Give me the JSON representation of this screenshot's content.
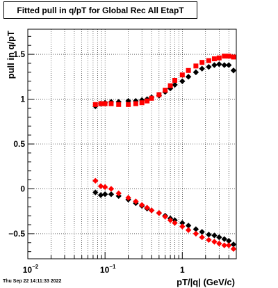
{
  "chart_data": {
    "type": "scatter",
    "title": "Fitted pull in q/pT for Global Rec All EtapT",
    "xlabel": "pT/|q| (GeV/c)",
    "ylabel": "pull in q/pT",
    "x_scale": "log",
    "xlim": [
      0.01,
      5.0
    ],
    "ylim": [
      -0.78,
      1.78
    ],
    "x_ticks": [
      {
        "value": 0.01,
        "label": "10^-2"
      },
      {
        "value": 0.1,
        "label": "10^-1"
      },
      {
        "value": 1,
        "label": "1"
      }
    ],
    "y_ticks": [
      {
        "value": -0.5,
        "label": "−0.5"
      },
      {
        "value": 0,
        "label": "0"
      },
      {
        "value": 0.5,
        "label": "0.5"
      },
      {
        "value": 1,
        "label": "1"
      },
      {
        "value": 1.5,
        "label": "1.5"
      }
    ],
    "grid": true,
    "series": [
      {
        "color": "#000000",
        "marker": "diamond",
        "group": "upper",
        "x": [
          0.075,
          0.088,
          0.1,
          0.12,
          0.15,
          0.2,
          0.25,
          0.3,
          0.35,
          0.4,
          0.5,
          0.6,
          0.7,
          0.8,
          1.0,
          1.2,
          1.5,
          1.8,
          2.2,
          2.6,
          3.0,
          3.5,
          4.0,
          4.6
        ],
        "y": [
          0.92,
          0.95,
          0.96,
          0.97,
          0.97,
          0.98,
          0.98,
          0.99,
          1.0,
          1.02,
          1.04,
          1.08,
          1.12,
          1.16,
          1.2,
          1.25,
          1.3,
          1.34,
          1.36,
          1.38,
          1.39,
          1.38,
          1.38,
          1.32
        ]
      },
      {
        "color": "#ff0000",
        "marker": "square",
        "group": "upper",
        "x": [
          0.075,
          0.088,
          0.1,
          0.12,
          0.15,
          0.2,
          0.25,
          0.3,
          0.35,
          0.4,
          0.5,
          0.6,
          0.7,
          0.8,
          1.0,
          1.2,
          1.5,
          1.8,
          2.2,
          2.6,
          3.0,
          3.5,
          4.0,
          4.6
        ],
        "y": [
          0.94,
          0.95,
          0.95,
          0.95,
          0.94,
          0.94,
          0.95,
          0.96,
          0.98,
          1.01,
          1.05,
          1.1,
          1.15,
          1.21,
          1.27,
          1.32,
          1.37,
          1.41,
          1.43,
          1.45,
          1.46,
          1.48,
          1.48,
          1.47
        ]
      },
      {
        "color": "#000000",
        "marker": "diamond",
        "group": "lower",
        "x": [
          0.075,
          0.088,
          0.1,
          0.12,
          0.15,
          0.2,
          0.25,
          0.3,
          0.35,
          0.4,
          0.5,
          0.6,
          0.7,
          0.8,
          1.0,
          1.2,
          1.5,
          1.8,
          2.2,
          2.6,
          3.0,
          3.5,
          4.0,
          4.6
        ],
        "y": [
          -0.04,
          -0.07,
          -0.06,
          -0.06,
          -0.08,
          -0.12,
          -0.16,
          -0.19,
          -0.22,
          -0.24,
          -0.27,
          -0.3,
          -0.33,
          -0.35,
          -0.38,
          -0.41,
          -0.45,
          -0.48,
          -0.51,
          -0.52,
          -0.54,
          -0.56,
          -0.58,
          -0.62
        ]
      },
      {
        "color": "#ff0000",
        "marker": "diamond",
        "group": "lower",
        "x": [
          0.075,
          0.088,
          0.1,
          0.12,
          0.15,
          0.2,
          0.25,
          0.3,
          0.35,
          0.4,
          0.5,
          0.6,
          0.7,
          0.8,
          1.0,
          1.2,
          1.5,
          1.8,
          2.2,
          2.6,
          3.0,
          3.5,
          4.0,
          4.6
        ],
        "y": [
          0.09,
          0.03,
          0.02,
          0.0,
          -0.05,
          -0.1,
          -0.14,
          -0.18,
          -0.21,
          -0.24,
          -0.27,
          -0.31,
          -0.35,
          -0.38,
          -0.42,
          -0.46,
          -0.5,
          -0.54,
          -0.57,
          -0.59,
          -0.61,
          -0.63,
          -0.63,
          -0.67
        ]
      }
    ]
  },
  "timestamp": "Thu Sep 22 14:11:33 2022"
}
